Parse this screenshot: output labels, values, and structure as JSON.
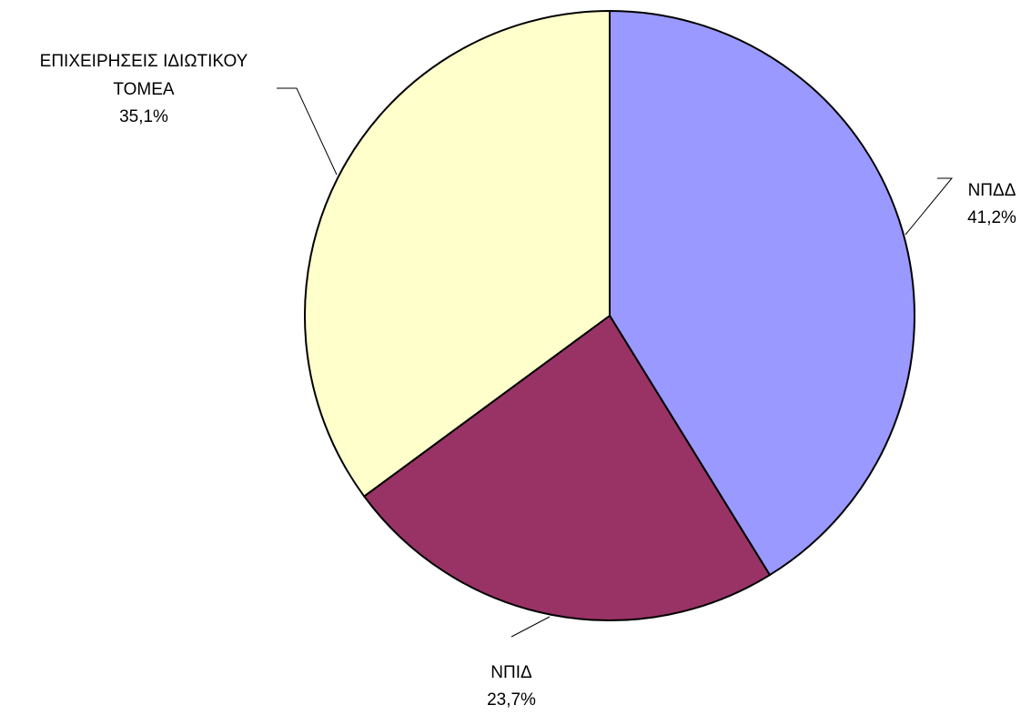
{
  "chart_data": {
    "type": "pie",
    "slices": [
      {
        "label": "ΝΠΔΔ",
        "value": 41.2,
        "value_label": "41,2%",
        "color": "#9999ff"
      },
      {
        "label": "ΝΠΙΔ",
        "value": 23.7,
        "value_label": "23,7%",
        "color": "#993366"
      },
      {
        "label_lines": [
          "ΕΠΙΧΕΙΡΗΣΕΙΣ ΙΔΙΩΤΙΚΟΥ",
          "ΤΟΜΕΑ"
        ],
        "value": 35.1,
        "value_label": "35,1%",
        "color": "#ffffcc"
      }
    ],
    "start_angle": "12 o'clock",
    "direction": "clockwise",
    "legend": "none",
    "data_labels": "outside with leader lines"
  }
}
